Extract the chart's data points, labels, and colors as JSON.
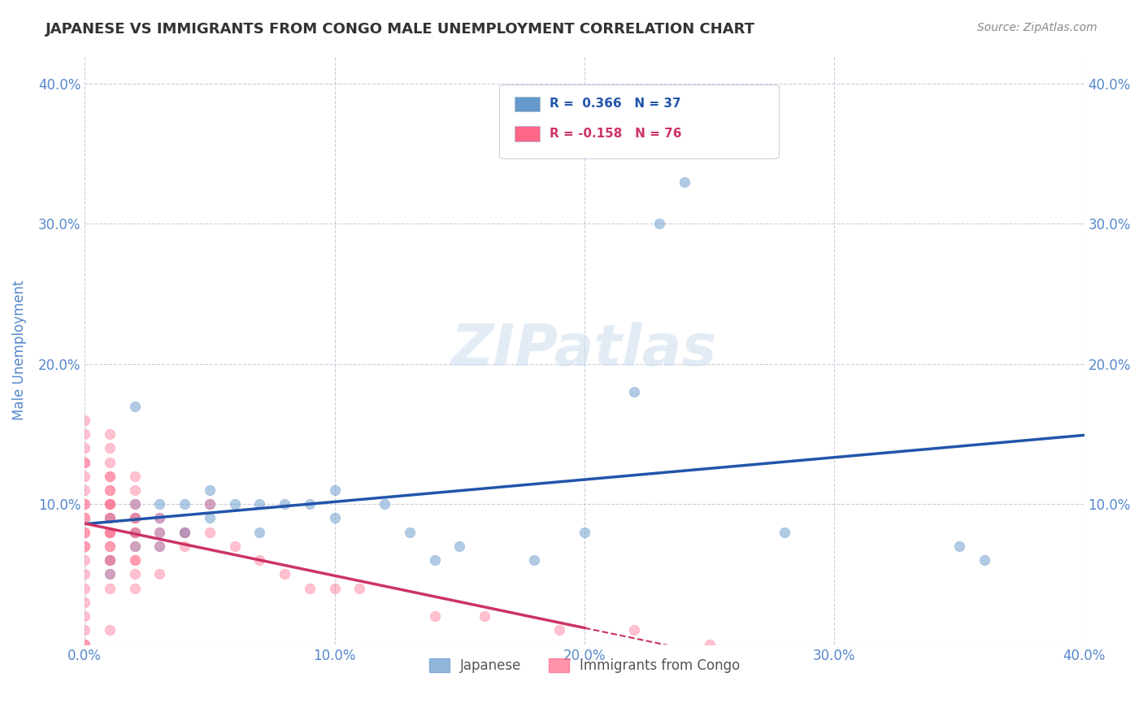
{
  "title": "JAPANESE VS IMMIGRANTS FROM CONGO MALE UNEMPLOYMENT CORRELATION CHART",
  "source": "Source: ZipAtlas.com",
  "xlabel": "",
  "ylabel": "Male Unemployment",
  "watermark": "ZIPatlas",
  "xlim": [
    0.0,
    0.4
  ],
  "ylim": [
    0.0,
    0.42
  ],
  "xticks": [
    0.0,
    0.1,
    0.2,
    0.3,
    0.4
  ],
  "yticks": [
    0.0,
    0.1,
    0.2,
    0.3,
    0.4
  ],
  "xticklabels": [
    "0.0%",
    "10.0%",
    "20.0%",
    "30.0%",
    "40.0%"
  ],
  "yticklabels": [
    "",
    "10.0%",
    "20.0%",
    "30.0%",
    "40.0%"
  ],
  "legend_entries": [
    {
      "label": "R =  0.366   N = 37",
      "color": "#6699cc"
    },
    {
      "label": "R = -0.158   N = 76",
      "color": "#ff6688"
    }
  ],
  "legend_label1": "Japanese",
  "legend_label2": "Immigrants from Congo",
  "blue_color": "#6699cc",
  "pink_color": "#ff6688",
  "blue_line_color": "#2255aa",
  "pink_line_color": "#cc3366",
  "axis_color": "#5588cc",
  "grid_color": "#ccccdd",
  "background_color": "#ffffff",
  "japanese_x": [
    0.01,
    0.01,
    0.01,
    0.02,
    0.02,
    0.02,
    0.02,
    0.02,
    0.03,
    0.03,
    0.03,
    0.03,
    0.04,
    0.04,
    0.04,
    0.05,
    0.05,
    0.05,
    0.06,
    0.07,
    0.07,
    0.08,
    0.09,
    0.1,
    0.1,
    0.12,
    0.13,
    0.14,
    0.15,
    0.18,
    0.2,
    0.22,
    0.23,
    0.24,
    0.28,
    0.35,
    0.36
  ],
  "japanese_y": [
    0.05,
    0.06,
    0.09,
    0.07,
    0.08,
    0.09,
    0.1,
    0.17,
    0.07,
    0.08,
    0.09,
    0.1,
    0.08,
    0.08,
    0.1,
    0.09,
    0.1,
    0.11,
    0.1,
    0.08,
    0.1,
    0.1,
    0.1,
    0.09,
    0.11,
    0.1,
    0.08,
    0.06,
    0.07,
    0.06,
    0.08,
    0.18,
    0.3,
    0.33,
    0.08,
    0.07,
    0.06
  ],
  "congo_x": [
    0.0,
    0.0,
    0.0,
    0.0,
    0.0,
    0.0,
    0.0,
    0.0,
    0.0,
    0.0,
    0.0,
    0.0,
    0.0,
    0.0,
    0.0,
    0.0,
    0.0,
    0.0,
    0.0,
    0.0,
    0.0,
    0.0,
    0.0,
    0.01,
    0.01,
    0.01,
    0.01,
    0.01,
    0.01,
    0.01,
    0.01,
    0.01,
    0.01,
    0.01,
    0.01,
    0.01,
    0.01,
    0.01,
    0.01,
    0.01,
    0.01,
    0.01,
    0.01,
    0.01,
    0.01,
    0.02,
    0.02,
    0.02,
    0.02,
    0.02,
    0.02,
    0.02,
    0.02,
    0.02,
    0.02,
    0.02,
    0.02,
    0.03,
    0.03,
    0.03,
    0.03,
    0.04,
    0.04,
    0.05,
    0.05,
    0.06,
    0.07,
    0.08,
    0.09,
    0.1,
    0.11,
    0.14,
    0.16,
    0.19,
    0.22,
    0.25
  ],
  "congo_y": [
    0.0,
    0.0,
    0.01,
    0.02,
    0.03,
    0.04,
    0.05,
    0.06,
    0.07,
    0.07,
    0.08,
    0.08,
    0.09,
    0.09,
    0.1,
    0.1,
    0.11,
    0.12,
    0.13,
    0.13,
    0.14,
    0.15,
    0.16,
    0.04,
    0.05,
    0.06,
    0.07,
    0.08,
    0.09,
    0.1,
    0.1,
    0.11,
    0.12,
    0.13,
    0.14,
    0.15,
    0.06,
    0.07,
    0.08,
    0.08,
    0.09,
    0.1,
    0.11,
    0.12,
    0.01,
    0.05,
    0.06,
    0.07,
    0.08,
    0.09,
    0.1,
    0.11,
    0.12,
    0.04,
    0.06,
    0.08,
    0.09,
    0.05,
    0.07,
    0.08,
    0.09,
    0.07,
    0.08,
    0.08,
    0.1,
    0.07,
    0.06,
    0.05,
    0.04,
    0.04,
    0.04,
    0.02,
    0.02,
    0.01,
    0.01,
    0.0
  ]
}
